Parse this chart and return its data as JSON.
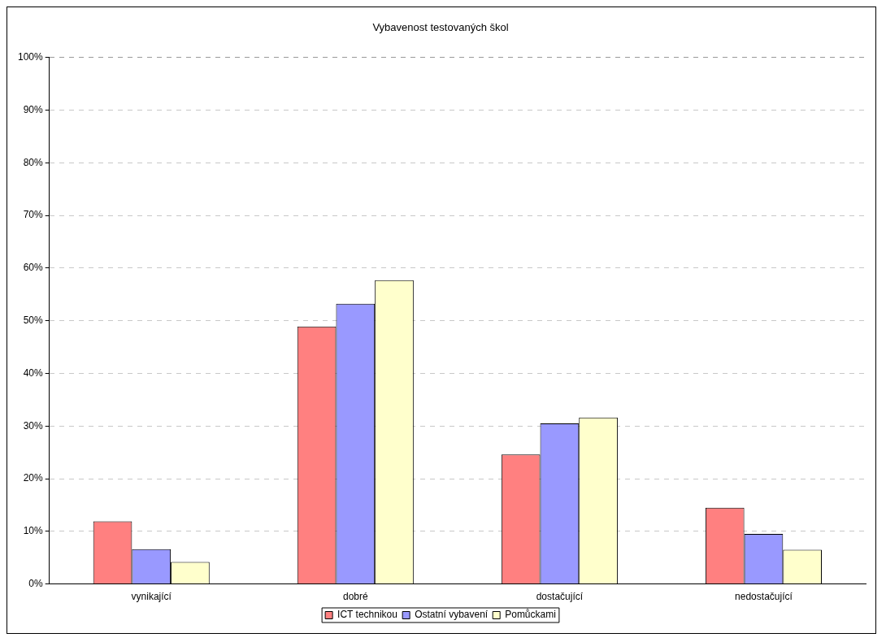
{
  "chart_data": {
    "type": "bar",
    "title": "Vybavenost testovaných škol",
    "categories": [
      "vynikající",
      "dobré",
      "dostačující",
      "nedostačující"
    ],
    "series": [
      {
        "name": "ICT technikou",
        "color": "#ff8080",
        "values": [
          11.9,
          48.9,
          24.6,
          14.5
        ]
      },
      {
        "name": "Ostatní vybavení",
        "color": "#9999ff",
        "values": [
          6.6,
          53.2,
          30.5,
          9.5
        ]
      },
      {
        "name": "Pomůckami",
        "color": "#ffffcc",
        "values": [
          4.2,
          57.7,
          31.6,
          6.5
        ]
      }
    ],
    "ylim": [
      0,
      100
    ],
    "yticks": [
      {
        "value": 0,
        "label": "0%"
      },
      {
        "value": 10,
        "label": "10%"
      },
      {
        "value": 20,
        "label": "20%"
      },
      {
        "value": 30,
        "label": "30%"
      },
      {
        "value": 40,
        "label": "40%"
      },
      {
        "value": 50,
        "label": "50%"
      },
      {
        "value": 60,
        "label": "60%"
      },
      {
        "value": 70,
        "label": "70%"
      },
      {
        "value": 80,
        "label": "80%"
      },
      {
        "value": 90,
        "label": "90%"
      },
      {
        "value": 100,
        "label": "100%"
      }
    ],
    "grid": "y",
    "legend": "bottom"
  }
}
